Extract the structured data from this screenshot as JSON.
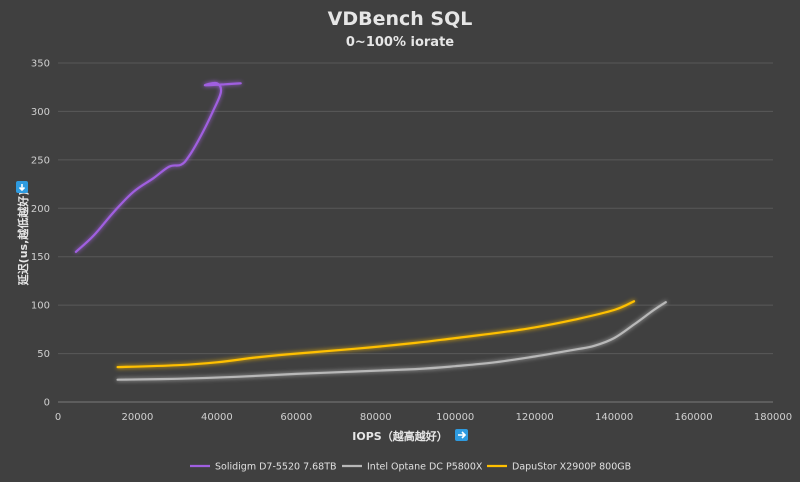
{
  "chart_data": {
    "type": "line",
    "title": "VDBench SQL",
    "subtitle": "0~100% iorate",
    "xlabel": "IOPS（越高越好）",
    "ylabel": "延迟(us,越低越好)",
    "xlim": [
      0,
      180000
    ],
    "ylim": [
      0,
      350
    ],
    "xticks": [
      0,
      20000,
      40000,
      60000,
      80000,
      100000,
      120000,
      140000,
      160000,
      180000
    ],
    "yticks": [
      0,
      50,
      100,
      150,
      200,
      250,
      300,
      350
    ],
    "grid": "horizontal",
    "legend_position": "bottom",
    "colors": {
      "background": "#404040",
      "gridline": "#595959"
    },
    "series": [
      {
        "name": "Solidigm D7-5520 7.68TB",
        "color": "#a05fe0",
        "points": [
          [
            4500,
            155
          ],
          [
            9000,
            172
          ],
          [
            14000,
            196
          ],
          [
            19000,
            217
          ],
          [
            24000,
            231
          ],
          [
            28000,
            243
          ],
          [
            31000,
            245
          ],
          [
            33000,
            254
          ],
          [
            36000,
            275
          ],
          [
            39000,
            300
          ],
          [
            41000,
            320
          ],
          [
            40000,
            329
          ],
          [
            37000,
            327
          ],
          [
            42000,
            328
          ],
          [
            46000,
            329
          ]
        ]
      },
      {
        "name": "Intel Optane DC P5800X",
        "color": "#b8b8b8",
        "points": [
          [
            15000,
            23
          ],
          [
            30000,
            24
          ],
          [
            45000,
            26
          ],
          [
            60000,
            29
          ],
          [
            75000,
            31.5
          ],
          [
            90000,
            34
          ],
          [
            100000,
            37
          ],
          [
            110000,
            41
          ],
          [
            120000,
            47
          ],
          [
            130000,
            54
          ],
          [
            135000,
            58
          ],
          [
            140000,
            66
          ],
          [
            145000,
            80
          ],
          [
            150000,
            95
          ],
          [
            153000,
            103
          ]
        ]
      },
      {
        "name": "DapuStor X2900P 800GB",
        "color": "#ffc000",
        "points": [
          [
            15000,
            36
          ],
          [
            30000,
            38
          ],
          [
            40000,
            41
          ],
          [
            50000,
            46
          ],
          [
            60000,
            50
          ],
          [
            75000,
            55
          ],
          [
            90000,
            61
          ],
          [
            100000,
            66
          ],
          [
            110000,
            71
          ],
          [
            120000,
            77
          ],
          [
            130000,
            85
          ],
          [
            140000,
            95
          ],
          [
            145000,
            104
          ]
        ]
      }
    ]
  }
}
